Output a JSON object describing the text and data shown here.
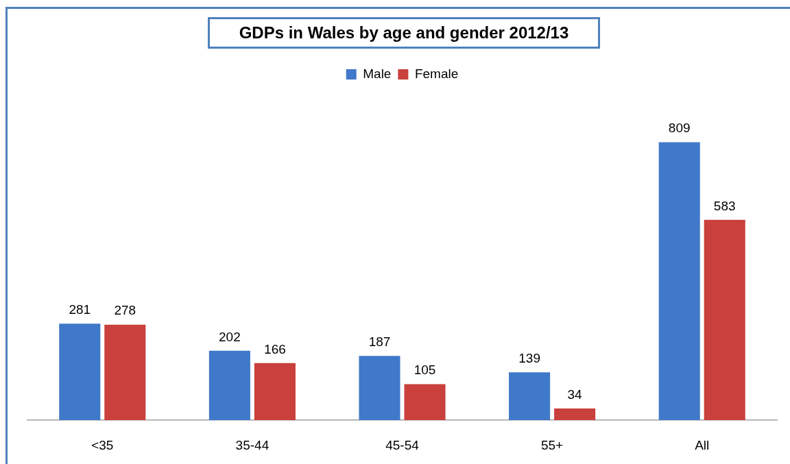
{
  "chart_data": {
    "type": "bar",
    "title": "GDPs in Wales by age and gender 2012/13",
    "categories": [
      "<35",
      "35-44",
      "45-54",
      "55+",
      "All"
    ],
    "series": [
      {
        "name": "Male",
        "color": "#4079c9",
        "values": [
          281,
          202,
          187,
          139,
          809
        ]
      },
      {
        "name": "Female",
        "color": "#c9403d",
        "values": [
          278,
          166,
          105,
          34,
          583
        ]
      }
    ],
    "data_labels": true,
    "legend": "top",
    "tick_labels": "x"
  }
}
